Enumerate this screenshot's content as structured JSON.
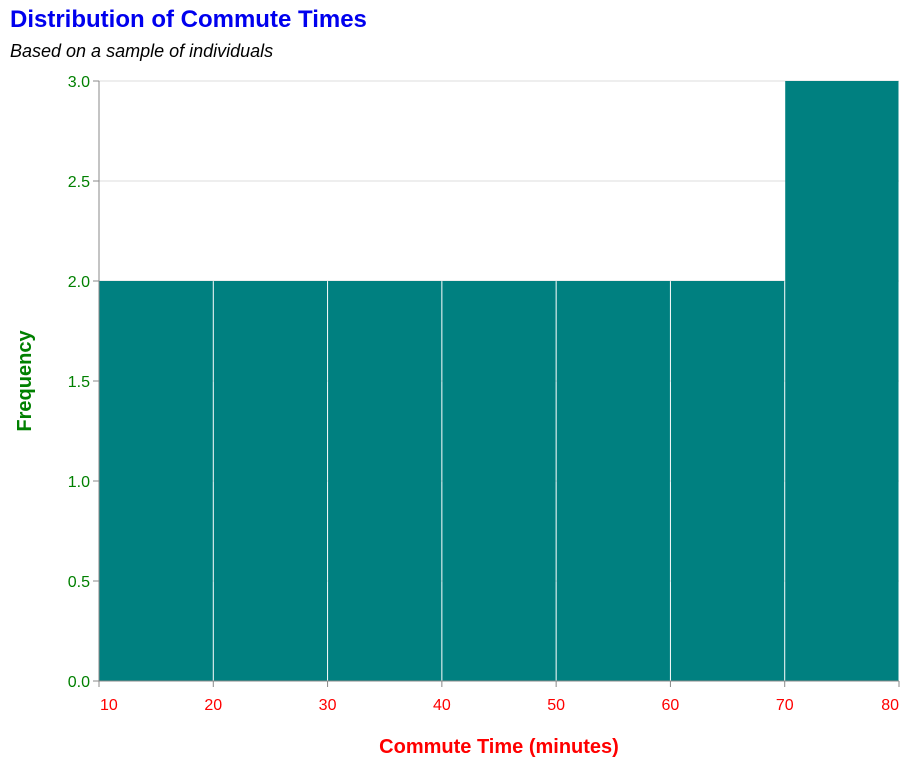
{
  "chart_data": {
    "type": "bar",
    "title": "Distribution of Commute Times",
    "subtitle": "Based on a sample of individuals",
    "xlabel": "Commute Time (minutes)",
    "ylabel": "Frequency",
    "bins": [
      {
        "x0": 10,
        "x1": 20,
        "count": 2
      },
      {
        "x0": 20,
        "x1": 30,
        "count": 2
      },
      {
        "x0": 30,
        "x1": 40,
        "count": 2
      },
      {
        "x0": 40,
        "x1": 50,
        "count": 2
      },
      {
        "x0": 50,
        "x1": 60,
        "count": 2
      },
      {
        "x0": 60,
        "x1": 70,
        "count": 2
      },
      {
        "x0": 70,
        "x1": 80,
        "count": 3
      }
    ],
    "xlim": [
      10,
      80
    ],
    "ylim": [
      0,
      3
    ],
    "x_ticks": [
      "10",
      "20",
      "30",
      "40",
      "50",
      "60",
      "70",
      "80"
    ],
    "y_ticks": [
      "0.0",
      "0.5",
      "1.0",
      "1.5",
      "2.0",
      "2.5",
      "3.0"
    ],
    "grid": true,
    "colors": {
      "bar": "#008080",
      "title": "#0000ee",
      "x_axis_text": "#ff0000",
      "y_axis_text": "#008000",
      "grid": "#dddddd",
      "axis": "#888888"
    }
  }
}
